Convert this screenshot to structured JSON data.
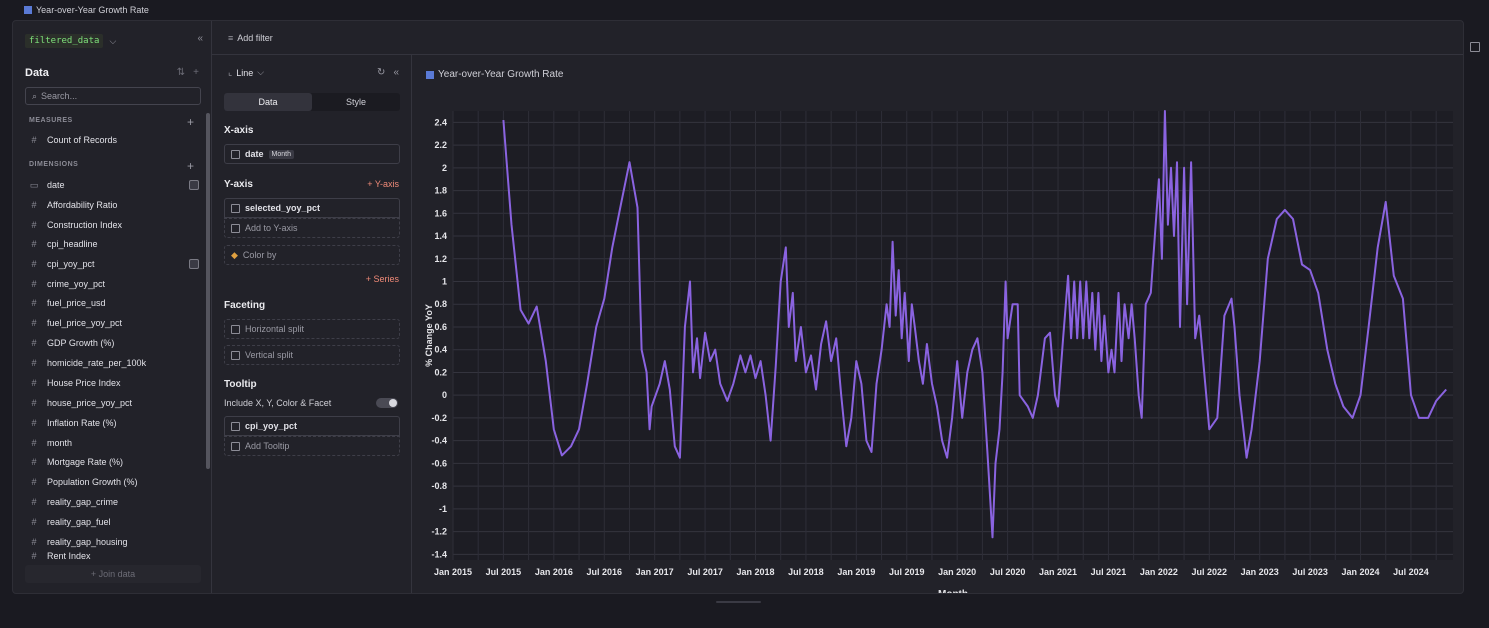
{
  "window": {
    "title": "Year-over-Year Growth Rate"
  },
  "datasource": {
    "name": "filtered_data"
  },
  "data_panel": {
    "title": "Data",
    "search_placeholder": "Search...",
    "measures_label": "MEASURES",
    "measures": [
      {
        "label": "Count of Records"
      }
    ],
    "dimensions_label": "DIMENSIONS",
    "dimensions": [
      {
        "label": "date",
        "kind": "date"
      },
      {
        "label": "Affordability Ratio"
      },
      {
        "label": "Construction Index"
      },
      {
        "label": "cpi_headline"
      },
      {
        "label": "cpi_yoy_pct"
      },
      {
        "label": "crime_yoy_pct"
      },
      {
        "label": "fuel_price_usd"
      },
      {
        "label": "fuel_price_yoy_pct"
      },
      {
        "label": "GDP Growth (%)"
      },
      {
        "label": "homicide_rate_per_100k"
      },
      {
        "label": "House Price Index"
      },
      {
        "label": "house_price_yoy_pct"
      },
      {
        "label": "Inflation Rate (%)"
      },
      {
        "label": "month"
      },
      {
        "label": "Mortgage Rate (%)"
      },
      {
        "label": "Population Growth (%)"
      },
      {
        "label": "reality_gap_crime"
      },
      {
        "label": "reality_gap_fuel"
      },
      {
        "label": "reality_gap_housing"
      },
      {
        "label": "Rent Index"
      }
    ],
    "join_label": "+ Join data"
  },
  "filter_bar": {
    "add_filter_label": "Add filter"
  },
  "config": {
    "chart_type": "Line",
    "tabs": [
      "Data",
      "Style"
    ],
    "x_axis_label": "X-axis",
    "x_field": "date",
    "x_field_badge": "Month",
    "y_axis_label": "Y-axis",
    "y_add_label": "+ Y-axis",
    "y_field": "selected_yoy_pct",
    "add_to_y_label": "Add to Y-axis",
    "color_by_label": "Color by",
    "series_add_label": "+ Series",
    "faceting_label": "Faceting",
    "horizontal_split_label": "Horizontal split",
    "vertical_split_label": "Vertical split",
    "tooltip_label": "Tooltip",
    "tooltip_include_label": "Include X, Y, Color & Facet",
    "tooltip_field": "cpi_yoy_pct",
    "add_tooltip_label": "Add Tooltip"
  },
  "accent_color": "#8a63e0",
  "chart_data": {
    "type": "line",
    "title": "Year-over-Year Growth Rate",
    "xlabel": "Month",
    "ylabel": "% Change YoY",
    "xlim": [
      2015.0,
      2024.917
    ],
    "ylim": [
      -1.45,
      2.5
    ],
    "x_ticks": [
      {
        "label": "Jan 2015",
        "t": 2015.0
      },
      {
        "label": "Jul 2015",
        "t": 2015.5
      },
      {
        "label": "Jan 2016",
        "t": 2016.0
      },
      {
        "label": "Jul 2016",
        "t": 2016.5
      },
      {
        "label": "Jan 2017",
        "t": 2017.0
      },
      {
        "label": "Jul 2017",
        "t": 2017.5
      },
      {
        "label": "Jan 2018",
        "t": 2018.0
      },
      {
        "label": "Jul 2018",
        "t": 2018.5
      },
      {
        "label": "Jan 2019",
        "t": 2019.0
      },
      {
        "label": "Jul 2019",
        "t": 2019.5
      },
      {
        "label": "Jan 2020",
        "t": 2020.0
      },
      {
        "label": "Jul 2020",
        "t": 2020.5
      },
      {
        "label": "Jan 2021",
        "t": 2021.0
      },
      {
        "label": "Jul 2021",
        "t": 2021.5
      },
      {
        "label": "Jan 2022",
        "t": 2022.0
      },
      {
        "label": "Jul 2022",
        "t": 2022.5
      },
      {
        "label": "Jan 2023",
        "t": 2023.0
      },
      {
        "label": "Jul 2023",
        "t": 2023.5
      },
      {
        "label": "Jan 2024",
        "t": 2024.0
      },
      {
        "label": "Jul 2024",
        "t": 2024.5
      }
    ],
    "y_ticks": [
      2.4,
      2.2,
      2,
      1.8,
      1.6,
      1.4,
      1.2,
      1,
      0.8,
      0.6,
      0.4,
      0.2,
      0,
      -0.2,
      -0.4,
      -0.6,
      -0.8,
      -1,
      -1.2,
      -1.4
    ],
    "series": [
      {
        "name": "selected_yoy_pct",
        "color": "#8a63e0",
        "points": [
          [
            2015.5,
            2.42
          ],
          [
            2015.58,
            1.5
          ],
          [
            2015.67,
            0.75
          ],
          [
            2015.75,
            0.63
          ],
          [
            2015.83,
            0.78
          ],
          [
            2015.92,
            0.3
          ],
          [
            2016.0,
            -0.3
          ],
          [
            2016.08,
            -0.53
          ],
          [
            2016.17,
            -0.45
          ],
          [
            2016.25,
            -0.3
          ],
          [
            2016.33,
            0.1
          ],
          [
            2016.42,
            0.6
          ],
          [
            2016.5,
            0.85
          ],
          [
            2016.58,
            1.3
          ],
          [
            2016.67,
            1.7
          ],
          [
            2016.75,
            2.05
          ],
          [
            2016.83,
            1.65
          ],
          [
            2016.87,
            0.4
          ],
          [
            2016.92,
            0.2
          ],
          [
            2016.95,
            -0.3
          ],
          [
            2016.97,
            -0.1
          ],
          [
            2017.05,
            0.1
          ],
          [
            2017.1,
            0.3
          ],
          [
            2017.15,
            0.05
          ],
          [
            2017.2,
            -0.45
          ],
          [
            2017.25,
            -0.55
          ],
          [
            2017.3,
            0.6
          ],
          [
            2017.35,
            1.0
          ],
          [
            2017.38,
            0.2
          ],
          [
            2017.42,
            0.5
          ],
          [
            2017.45,
            0.15
          ],
          [
            2017.5,
            0.55
          ],
          [
            2017.55,
            0.3
          ],
          [
            2017.6,
            0.4
          ],
          [
            2017.65,
            0.1
          ],
          [
            2017.72,
            -0.05
          ],
          [
            2017.78,
            0.1
          ],
          [
            2017.85,
            0.35
          ],
          [
            2017.9,
            0.2
          ],
          [
            2017.95,
            0.35
          ],
          [
            2018.0,
            0.15
          ],
          [
            2018.05,
            0.3
          ],
          [
            2018.1,
            0.0
          ],
          [
            2018.15,
            -0.4
          ],
          [
            2018.2,
            0.25
          ],
          [
            2018.25,
            1.0
          ],
          [
            2018.3,
            1.3
          ],
          [
            2018.33,
            0.6
          ],
          [
            2018.37,
            0.9
          ],
          [
            2018.4,
            0.3
          ],
          [
            2018.45,
            0.6
          ],
          [
            2018.5,
            0.2
          ],
          [
            2018.55,
            0.35
          ],
          [
            2018.6,
            0.05
          ],
          [
            2018.65,
            0.45
          ],
          [
            2018.7,
            0.65
          ],
          [
            2018.75,
            0.3
          ],
          [
            2018.8,
            0.5
          ],
          [
            2018.85,
            0.0
          ],
          [
            2018.9,
            -0.45
          ],
          [
            2018.95,
            -0.2
          ],
          [
            2019.0,
            0.3
          ],
          [
            2019.05,
            0.1
          ],
          [
            2019.1,
            -0.4
          ],
          [
            2019.15,
            -0.5
          ],
          [
            2019.2,
            0.1
          ],
          [
            2019.25,
            0.4
          ],
          [
            2019.3,
            0.8
          ],
          [
            2019.33,
            0.6
          ],
          [
            2019.36,
            1.35
          ],
          [
            2019.39,
            0.7
          ],
          [
            2019.42,
            1.1
          ],
          [
            2019.45,
            0.5
          ],
          [
            2019.48,
            0.9
          ],
          [
            2019.52,
            0.3
          ],
          [
            2019.55,
            0.8
          ],
          [
            2019.58,
            0.6
          ],
          [
            2019.62,
            0.3
          ],
          [
            2019.66,
            0.1
          ],
          [
            2019.7,
            0.45
          ],
          [
            2019.75,
            0.1
          ],
          [
            2019.8,
            -0.1
          ],
          [
            2019.85,
            -0.4
          ],
          [
            2019.9,
            -0.55
          ],
          [
            2019.95,
            -0.2
          ],
          [
            2020.0,
            0.3
          ],
          [
            2020.05,
            -0.2
          ],
          [
            2020.1,
            0.2
          ],
          [
            2020.15,
            0.4
          ],
          [
            2020.2,
            0.5
          ],
          [
            2020.25,
            0.2
          ],
          [
            2020.3,
            -0.5
          ],
          [
            2020.35,
            -1.25
          ],
          [
            2020.38,
            -0.6
          ],
          [
            2020.42,
            -0.3
          ],
          [
            2020.45,
            0.2
          ],
          [
            2020.48,
            1.0
          ],
          [
            2020.5,
            0.5
          ],
          [
            2020.55,
            0.8
          ],
          [
            2020.6,
            0.8
          ],
          [
            2020.62,
            0.0
          ],
          [
            2020.7,
            -0.1
          ],
          [
            2020.75,
            -0.2
          ],
          [
            2020.8,
            0.0
          ],
          [
            2020.87,
            0.5
          ],
          [
            2020.92,
            0.55
          ],
          [
            2020.97,
            0.0
          ],
          [
            2021.0,
            -0.1
          ],
          [
            2021.05,
            0.5
          ],
          [
            2021.1,
            1.05
          ],
          [
            2021.13,
            0.5
          ],
          [
            2021.16,
            1.0
          ],
          [
            2021.19,
            0.5
          ],
          [
            2021.22,
            1.0
          ],
          [
            2021.25,
            0.5
          ],
          [
            2021.28,
            1.0
          ],
          [
            2021.31,
            0.5
          ],
          [
            2021.34,
            0.9
          ],
          [
            2021.37,
            0.4
          ],
          [
            2021.4,
            0.9
          ],
          [
            2021.43,
            0.3
          ],
          [
            2021.46,
            0.7
          ],
          [
            2021.5,
            0.2
          ],
          [
            2021.53,
            0.4
          ],
          [
            2021.56,
            0.2
          ],
          [
            2021.6,
            0.9
          ],
          [
            2021.63,
            0.3
          ],
          [
            2021.66,
            0.8
          ],
          [
            2021.7,
            0.5
          ],
          [
            2021.73,
            0.8
          ],
          [
            2021.76,
            0.5
          ],
          [
            2021.8,
            0.0
          ],
          [
            2021.83,
            -0.2
          ],
          [
            2021.87,
            0.8
          ],
          [
            2021.92,
            0.9
          ],
          [
            2022.0,
            1.9
          ],
          [
            2022.03,
            1.2
          ],
          [
            2022.06,
            2.5
          ],
          [
            2022.09,
            1.5
          ],
          [
            2022.12,
            2.0
          ],
          [
            2022.15,
            1.4
          ],
          [
            2022.18,
            2.05
          ],
          [
            2022.21,
            0.6
          ],
          [
            2022.25,
            2.0
          ],
          [
            2022.28,
            0.8
          ],
          [
            2022.32,
            2.05
          ],
          [
            2022.36,
            0.5
          ],
          [
            2022.4,
            0.7
          ],
          [
            2022.45,
            0.2
          ],
          [
            2022.5,
            -0.3
          ],
          [
            2022.58,
            -0.2
          ],
          [
            2022.65,
            0.7
          ],
          [
            2022.72,
            0.85
          ],
          [
            2022.75,
            0.6
          ],
          [
            2022.8,
            0.0
          ],
          [
            2022.87,
            -0.55
          ],
          [
            2022.92,
            -0.3
          ],
          [
            2023.0,
            0.3
          ],
          [
            2023.08,
            1.2
          ],
          [
            2023.17,
            1.55
          ],
          [
            2023.25,
            1.63
          ],
          [
            2023.33,
            1.55
          ],
          [
            2023.42,
            1.15
          ],
          [
            2023.5,
            1.1
          ],
          [
            2023.58,
            0.9
          ],
          [
            2023.67,
            0.4
          ],
          [
            2023.75,
            0.1
          ],
          [
            2023.83,
            -0.1
          ],
          [
            2023.92,
            -0.2
          ],
          [
            2024.0,
            0.0
          ],
          [
            2024.08,
            0.6
          ],
          [
            2024.17,
            1.3
          ],
          [
            2024.25,
            1.7
          ],
          [
            2024.33,
            1.05
          ],
          [
            2024.42,
            0.85
          ],
          [
            2024.5,
            0.0
          ],
          [
            2024.58,
            -0.2
          ],
          [
            2024.67,
            -0.2
          ],
          [
            2024.75,
            -0.05
          ],
          [
            2024.85,
            0.05
          ]
        ]
      }
    ]
  }
}
